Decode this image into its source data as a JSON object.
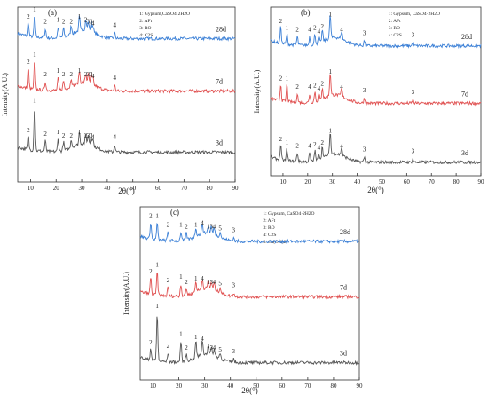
{
  "chart_data": [
    {
      "type": "line",
      "panel": "(a)",
      "xlabel": "2θ(°)",
      "ylabel": "Intensity(A.U.)",
      "xlim": [
        5,
        90
      ],
      "xticks": [
        10,
        20,
        30,
        40,
        50,
        60,
        70,
        80,
        90
      ],
      "legend": [
        "1: Gypsum,CaSO4·2H2O",
        "2: AFt",
        "3: RO",
        "4: C2S"
      ],
      "series": [
        {
          "name": "28d",
          "color": "#3a7fd6",
          "baseline": 0.82,
          "peaks": [
            [
              9.1,
              0.08,
              "2"
            ],
            [
              11.6,
              0.12,
              "1"
            ],
            [
              15.8,
              0.05,
              "2"
            ],
            [
              20.8,
              0.06,
              "1"
            ],
            [
              22.9,
              0.05,
              "2"
            ],
            [
              25.9,
              0.05,
              "2"
            ],
            [
              29.1,
              0.08,
              "1"
            ],
            [
              31.6,
              0.06,
              "2"
            ],
            [
              32.6,
              0.05,
              "3"
            ],
            [
              33.7,
              0.05,
              "3"
            ],
            [
              34.4,
              0.04,
              "4"
            ],
            [
              42.9,
              0.03,
              "4"
            ]
          ]
        },
        {
          "name": "7d",
          "color": "#e05050",
          "baseline": 0.52,
          "peaks": [
            [
              9.1,
              0.12,
              "2"
            ],
            [
              11.6,
              0.16,
              "1"
            ],
            [
              15.8,
              0.05,
              "2"
            ],
            [
              20.8,
              0.07,
              "1"
            ],
            [
              22.9,
              0.05,
              "2"
            ],
            [
              25.9,
              0.05,
              "2"
            ],
            [
              29.1,
              0.07,
              "1"
            ],
            [
              31.6,
              0.05,
              "2"
            ],
            [
              32.6,
              0.05,
              "3"
            ],
            [
              33.7,
              0.05,
              "3"
            ],
            [
              34.4,
              0.04,
              "4"
            ],
            [
              42.9,
              0.03,
              "4"
            ]
          ]
        },
        {
          "name": "3d",
          "color": "#555555",
          "baseline": 0.17,
          "peaks": [
            [
              9.1,
              0.08,
              "2"
            ],
            [
              11.6,
              0.25,
              "1"
            ],
            [
              15.8,
              0.06,
              "2"
            ],
            [
              20.8,
              0.07,
              "1"
            ],
            [
              22.9,
              0.05,
              "2"
            ],
            [
              25.9,
              0.05,
              "2"
            ],
            [
              29.1,
              0.07,
              "1"
            ],
            [
              31.6,
              0.05,
              "2"
            ],
            [
              32.6,
              0.05,
              "3"
            ],
            [
              33.7,
              0.05,
              "3"
            ],
            [
              34.4,
              0.04,
              "4"
            ],
            [
              42.9,
              0.04,
              "4"
            ]
          ]
        }
      ]
    },
    {
      "type": "line",
      "panel": "(b)",
      "xlabel": "2θ(°)",
      "ylabel": "Intensity(A.U.)",
      "xlim": [
        5,
        90
      ],
      "xticks": [
        10,
        20,
        30,
        40,
        50,
        60,
        70,
        80,
        90
      ],
      "legend": [
        "1: Gypsum, CaSO4·2H2O",
        "2: AFt",
        "3: RO",
        "4: C2S"
      ],
      "series": [
        {
          "name": "28d",
          "color": "#3a7fd6",
          "baseline": 0.77,
          "peaks": [
            [
              9.1,
              0.1,
              "2"
            ],
            [
              11.6,
              0.06,
              "1"
            ],
            [
              15.8,
              0.05,
              "2"
            ],
            [
              20.8,
              0.05,
              "4"
            ],
            [
              22.9,
              0.06,
              "2"
            ],
            [
              24.5,
              0.04,
              "4"
            ],
            [
              25.9,
              0.07,
              "2"
            ],
            [
              29.1,
              0.14,
              "1"
            ],
            [
              33.7,
              0.05,
              "4"
            ],
            [
              42.9,
              0.03,
              "3"
            ],
            [
              62.5,
              0.02,
              "3"
            ]
          ]
        },
        {
          "name": "7d",
          "color": "#e05050",
          "baseline": 0.43,
          "peaks": [
            [
              9.1,
              0.1,
              "2"
            ],
            [
              11.6,
              0.1,
              "1"
            ],
            [
              15.8,
              0.05,
              "2"
            ],
            [
              20.8,
              0.05,
              "4"
            ],
            [
              22.9,
              0.06,
              "2"
            ],
            [
              24.5,
              0.04,
              "4"
            ],
            [
              25.9,
              0.07,
              "2"
            ],
            [
              29.1,
              0.14,
              "1"
            ],
            [
              33.7,
              0.05,
              "4"
            ],
            [
              42.9,
              0.03,
              "3"
            ],
            [
              62.5,
              0.02,
              "3"
            ]
          ]
        },
        {
          "name": "3d",
          "color": "#555555",
          "baseline": 0.08,
          "peaks": [
            [
              9.1,
              0.09,
              "2"
            ],
            [
              11.6,
              0.07,
              "1"
            ],
            [
              15.8,
              0.05,
              "2"
            ],
            [
              20.8,
              0.05,
              "4"
            ],
            [
              22.9,
              0.06,
              "2"
            ],
            [
              24.5,
              0.04,
              "4"
            ],
            [
              25.9,
              0.07,
              "2"
            ],
            [
              29.1,
              0.14,
              "1"
            ],
            [
              33.7,
              0.05,
              "4"
            ],
            [
              42.9,
              0.03,
              "3"
            ],
            [
              62.5,
              0.02,
              "3"
            ]
          ]
        }
      ]
    },
    {
      "type": "line",
      "panel": "(c)",
      "xlabel": "2θ(°)",
      "ylabel": "Intensity(A.U.)",
      "xlim": [
        5,
        90
      ],
      "xticks": [
        10,
        20,
        30,
        40,
        50,
        60,
        70,
        80,
        90
      ],
      "legend": [
        "1: Gypsum, CaSO4·2H2O",
        "2: AFt",
        "3: RO",
        "4: C2S",
        "5: Ca(OH)2"
      ],
      "series": [
        {
          "name": "28d",
          "color": "#3a7fd6",
          "baseline": 0.8,
          "peaks": [
            [
              9.1,
              0.1,
              "2"
            ],
            [
              11.6,
              0.1,
              "1"
            ],
            [
              15.8,
              0.05,
              "2"
            ],
            [
              20.8,
              0.05,
              "1"
            ],
            [
              22.9,
              0.04,
              "2"
            ],
            [
              26.6,
              0.05,
              "1"
            ],
            [
              29.1,
              0.06,
              "4"
            ],
            [
              31.4,
              0.04,
              "1"
            ],
            [
              32.6,
              0.04,
              "3"
            ],
            [
              33.7,
              0.04,
              "4"
            ],
            [
              36.0,
              0.03,
              "5"
            ],
            [
              41.2,
              0.02,
              "3"
            ]
          ]
        },
        {
          "name": "7d",
          "color": "#e05050",
          "baseline": 0.48,
          "peaks": [
            [
              9.1,
              0.1,
              "2"
            ],
            [
              11.6,
              0.14,
              "1"
            ],
            [
              15.8,
              0.05,
              "2"
            ],
            [
              20.8,
              0.07,
              "1"
            ],
            [
              22.9,
              0.04,
              "2"
            ],
            [
              26.6,
              0.06,
              "1"
            ],
            [
              29.1,
              0.06,
              "4"
            ],
            [
              31.4,
              0.04,
              "1"
            ],
            [
              32.6,
              0.04,
              "3"
            ],
            [
              33.7,
              0.04,
              "4"
            ],
            [
              36.0,
              0.03,
              "5"
            ],
            [
              41.2,
              0.02,
              "3"
            ]
          ]
        },
        {
          "name": "3d",
          "color": "#555555",
          "baseline": 0.1,
          "peaks": [
            [
              9.1,
              0.07,
              "2"
            ],
            [
              11.6,
              0.28,
              "1"
            ],
            [
              15.8,
              0.05,
              "2"
            ],
            [
              20.8,
              0.12,
              "1"
            ],
            [
              22.9,
              0.04,
              "2"
            ],
            [
              26.6,
              0.1,
              "1"
            ],
            [
              29.1,
              0.09,
              "4"
            ],
            [
              31.4,
              0.05,
              "1"
            ],
            [
              32.6,
              0.04,
              "3"
            ],
            [
              33.7,
              0.04,
              "4"
            ],
            [
              36.0,
              0.03,
              "5"
            ],
            [
              41.2,
              0.02,
              "3"
            ]
          ]
        }
      ]
    }
  ]
}
